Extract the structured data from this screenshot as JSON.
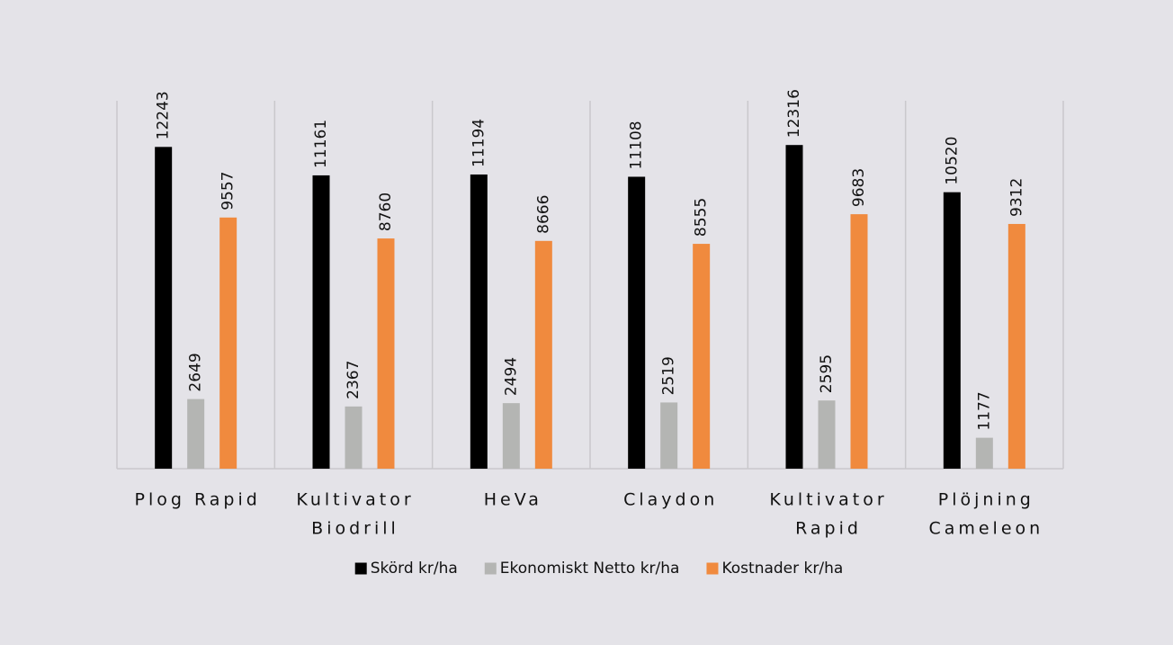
{
  "chart_data": {
    "type": "bar",
    "categories": [
      [
        "Plog Rapid"
      ],
      [
        "Kultivator",
        "Biodrill"
      ],
      [
        "HeVa"
      ],
      [
        "Claydon"
      ],
      [
        "Kultivator",
        "Rapid"
      ],
      [
        "Plöjning",
        "Cameleon"
      ]
    ],
    "series": [
      {
        "name": "Skörd kr/ha",
        "color": "#000000",
        "values": [
          12243,
          11161,
          11194,
          11108,
          12316,
          10520
        ]
      },
      {
        "name": "Ekonomiskt Netto kr/ha",
        "color": "#b4b5b3",
        "values": [
          2649,
          2367,
          2494,
          2519,
          2595,
          1177
        ]
      },
      {
        "name": "Kostnader kr/ha",
        "color": "#f08a3e",
        "values": [
          9557,
          8760,
          8666,
          8555,
          9683,
          9312
        ]
      }
    ],
    "ylim": [
      0,
      14000
    ],
    "legend": "bottom"
  }
}
